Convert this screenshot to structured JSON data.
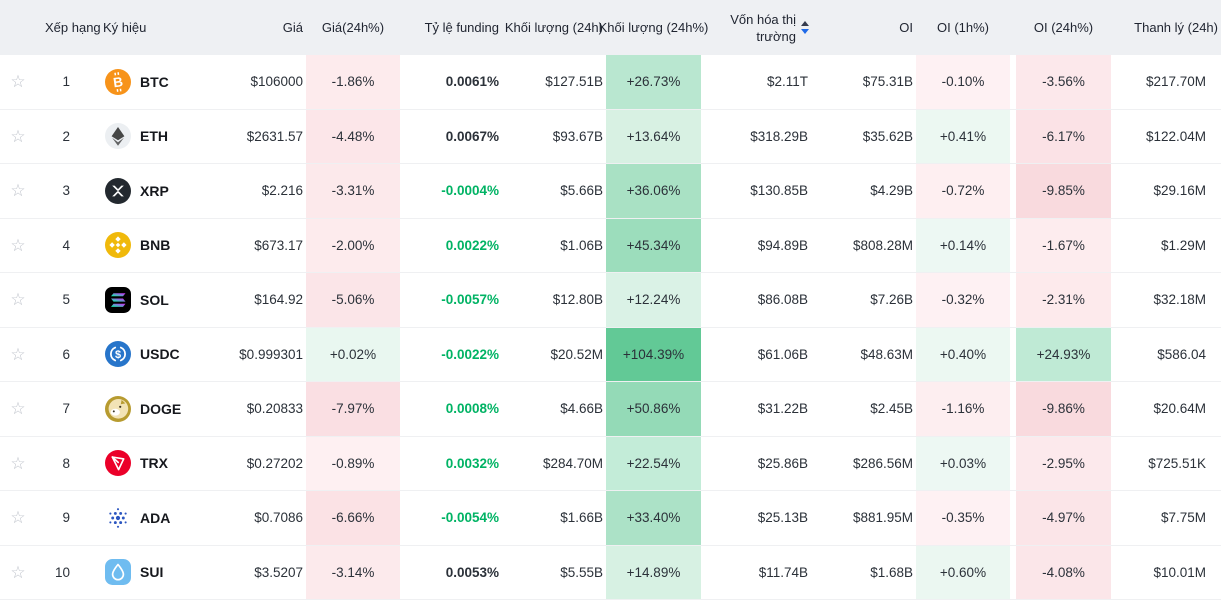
{
  "palette": {
    "header_bg": "#eef0f3",
    "row_bg": "#ffffff",
    "border": "#eff0f2",
    "text_primary": "#16181d",
    "text_secondary": "#2b3139",
    "funding_green": "#00b364",
    "funding_dark": "#2b3139",
    "negative_base": "#f6465d",
    "positive_base": "#0db260",
    "star": "#c0c4cc",
    "sort_up": "#353c4e",
    "sort_down": "#1f6ae8"
  },
  "icons": {
    "star": "☆",
    "sort": "sort-carets-icon"
  },
  "table": {
    "columns": [
      {
        "key": "rank",
        "label": "Xếp hạng"
      },
      {
        "key": "symbol",
        "label": "Ký hiệu"
      },
      {
        "key": "price",
        "label": "Giá"
      },
      {
        "key": "change24h",
        "label": "Giá(24h%)"
      },
      {
        "key": "funding",
        "label": "Tỷ lệ funding"
      },
      {
        "key": "volume",
        "label": "Khối lượng (24h)"
      },
      {
        "key": "volumePct",
        "label": "Khối lượng (24h%)"
      },
      {
        "key": "marketCap",
        "label": "Vốn hóa thị trường",
        "sorted": "desc"
      },
      {
        "key": "oi",
        "label": "OI"
      },
      {
        "key": "oi1h",
        "label": "OI (1h%)"
      },
      {
        "key": "oi24h",
        "label": "OI (24h%)"
      },
      {
        "key": "liq",
        "label": "Thanh lý (24h)"
      }
    ],
    "rows": [
      {
        "rank": "1",
        "symbol": "BTC",
        "icon": {
          "name": "btc-icon",
          "shape": "btc",
          "bg": "#f7931a",
          "fg": "#ffffff"
        },
        "price": "$106000",
        "change24h": {
          "text": "-1.86%",
          "bg": "#fdebed"
        },
        "funding": {
          "text": "0.0061%",
          "color": "#2b3139"
        },
        "volume": "$127.51B",
        "volumePct": {
          "text": "+26.73%",
          "bg": "#b9e7d0"
        },
        "marketCap": "$2.11T",
        "oi": "$75.31B",
        "oi1h": {
          "text": "-0.10%",
          "bg": "#fef1f3"
        },
        "oi24h": {
          "text": "-3.56%",
          "bg": "#fce8eb"
        },
        "liq": "$217.70M"
      },
      {
        "rank": "2",
        "symbol": "ETH",
        "icon": {
          "name": "eth-icon",
          "shape": "eth",
          "bg": "#eceff2",
          "fg": "#343434"
        },
        "price": "$2631.57",
        "change24h": {
          "text": "-4.48%",
          "bg": "#fce6e9"
        },
        "funding": {
          "text": "0.0067%",
          "color": "#2b3139"
        },
        "volume": "$93.67B",
        "volumePct": {
          "text": "+13.64%",
          "bg": "#d8f1e3"
        },
        "marketCap": "$318.29B",
        "oi": "$35.62B",
        "oi1h": {
          "text": "+0.41%",
          "bg": "#ecf8f2"
        },
        "oi24h": {
          "text": "-6.17%",
          "bg": "#fbe2e6"
        },
        "liq": "$122.04M"
      },
      {
        "rank": "3",
        "symbol": "XRP",
        "icon": {
          "name": "xrp-icon",
          "shape": "xrp",
          "bg": "#23292f",
          "fg": "#ffffff"
        },
        "price": "$2.216",
        "change24h": {
          "text": "-3.31%",
          "bg": "#fce9eb"
        },
        "funding": {
          "text": "-0.0004%",
          "color": "#00b364"
        },
        "volume": "$5.66B",
        "volumePct": {
          "text": "+36.06%",
          "bg": "#a9e1c4"
        },
        "marketCap": "$130.85B",
        "oi": "$4.29B",
        "oi1h": {
          "text": "-0.72%",
          "bg": "#feeff1"
        },
        "oi24h": {
          "text": "-9.85%",
          "bg": "#f9dade"
        },
        "liq": "$29.16M"
      },
      {
        "rank": "4",
        "symbol": "BNB",
        "icon": {
          "name": "bnb-icon",
          "shape": "bnb",
          "bg": "#f0b90b",
          "fg": "#ffffff"
        },
        "price": "$673.17",
        "change24h": {
          "text": "-2.00%",
          "bg": "#fdebed"
        },
        "funding": {
          "text": "0.0022%",
          "color": "#00b364"
        },
        "volume": "$1.06B",
        "volumePct": {
          "text": "+45.34%",
          "bg": "#9cddbc"
        },
        "marketCap": "$94.89B",
        "oi": "$808.28M",
        "oi1h": {
          "text": "+0.14%",
          "bg": "#edf8f3"
        },
        "oi24h": {
          "text": "-1.67%",
          "bg": "#fdecee"
        },
        "liq": "$1.29M"
      },
      {
        "rank": "5",
        "symbol": "SOL",
        "icon": {
          "name": "sol-icon",
          "shape": "sol",
          "bg": "#000000",
          "fg": "#ffffff",
          "grad1": "#00ffa3",
          "grad2": "#dc1fff"
        },
        "price": "$164.92",
        "change24h": {
          "text": "-5.06%",
          "bg": "#fbe5e8"
        },
        "funding": {
          "text": "-0.0057%",
          "color": "#00b364"
        },
        "volume": "$12.80B",
        "volumePct": {
          "text": "+12.24%",
          "bg": "#daf2e6"
        },
        "marketCap": "$86.08B",
        "oi": "$7.26B",
        "oi1h": {
          "text": "-0.32%",
          "bg": "#fef1f3"
        },
        "oi24h": {
          "text": "-2.31%",
          "bg": "#fdeaec"
        },
        "liq": "$32.18M"
      },
      {
        "rank": "6",
        "symbol": "USDC",
        "icon": {
          "name": "usdc-icon",
          "shape": "usdc",
          "bg": "#2775ca",
          "fg": "#ffffff"
        },
        "price": "$0.999301",
        "change24h": {
          "text": "+0.02%",
          "bg": "#e9f7f0"
        },
        "funding": {
          "text": "-0.0022%",
          "color": "#00b364"
        },
        "volume": "$20.52M",
        "volumePct": {
          "text": "+104.39%",
          "bg": "#62c996"
        },
        "marketCap": "$61.06B",
        "oi": "$48.63M",
        "oi1h": {
          "text": "+0.40%",
          "bg": "#ecf8f2"
        },
        "oi24h": {
          "text": "+24.93%",
          "bg": "#bfead5"
        },
        "liq": "$586.04"
      },
      {
        "rank": "7",
        "symbol": "DOGE",
        "icon": {
          "name": "doge-icon",
          "shape": "doge",
          "bg": "#b79b30",
          "fg": "#ffffff",
          "inner": "#f2e3b6",
          "accent": "#3c3524"
        },
        "price": "$0.20833",
        "change24h": {
          "text": "-7.97%",
          "bg": "#fadfe3"
        },
        "funding": {
          "text": "0.0008%",
          "color": "#00b364"
        },
        "volume": "$4.66B",
        "volumePct": {
          "text": "+50.86%",
          "bg": "#94dab7"
        },
        "marketCap": "$31.22B",
        "oi": "$2.45B",
        "oi1h": {
          "text": "-1.16%",
          "bg": "#fdeef0"
        },
        "oi24h": {
          "text": "-9.86%",
          "bg": "#f9dade"
        },
        "liq": "$20.64M"
      },
      {
        "rank": "8",
        "symbol": "TRX",
        "icon": {
          "name": "trx-icon",
          "shape": "trx",
          "bg": "#eb0029",
          "fg": "#ffffff"
        },
        "price": "$0.27202",
        "change24h": {
          "text": "-0.89%",
          "bg": "#fef0f2"
        },
        "funding": {
          "text": "0.0032%",
          "color": "#00b364"
        },
        "volume": "$284.70M",
        "volumePct": {
          "text": "+22.54%",
          "bg": "#c3ecd8"
        },
        "marketCap": "$25.86B",
        "oi": "$286.56M",
        "oi1h": {
          "text": "+0.03%",
          "bg": "#edf8f3"
        },
        "oi24h": {
          "text": "-2.95%",
          "bg": "#fce9ec"
        },
        "liq": "$725.51K"
      },
      {
        "rank": "9",
        "symbol": "ADA",
        "icon": {
          "name": "ada-icon",
          "shape": "ada",
          "bg": "transparent",
          "fg": "#2c56c0"
        },
        "price": "$0.7086",
        "change24h": {
          "text": "-6.66%",
          "bg": "#fbe2e5"
        },
        "funding": {
          "text": "-0.0054%",
          "color": "#00b364"
        },
        "volume": "$1.66B",
        "volumePct": {
          "text": "+33.40%",
          "bg": "#ace2c7"
        },
        "marketCap": "$25.13B",
        "oi": "$881.95M",
        "oi1h": {
          "text": "-0.35%",
          "bg": "#fef1f3"
        },
        "oi24h": {
          "text": "-4.97%",
          "bg": "#fbe5e8"
        },
        "liq": "$7.75M"
      },
      {
        "rank": "10",
        "symbol": "SUI",
        "icon": {
          "name": "sui-icon",
          "shape": "sui",
          "bg": "#6fbcf0",
          "fg": "#ffffff"
        },
        "price": "$3.5207",
        "change24h": {
          "text": "-3.14%",
          "bg": "#fceaec"
        },
        "funding": {
          "text": "0.0053%",
          "color": "#2b3139"
        },
        "volume": "$5.55B",
        "volumePct": {
          "text": "+14.89%",
          "bg": "#d7f1e3"
        },
        "marketCap": "$11.74B",
        "oi": "$1.68B",
        "oi1h": {
          "text": "+0.60%",
          "bg": "#ebf7f1"
        },
        "oi24h": {
          "text": "-4.08%",
          "bg": "#fbe6e9"
        },
        "liq": "$10.01M"
      }
    ]
  }
}
